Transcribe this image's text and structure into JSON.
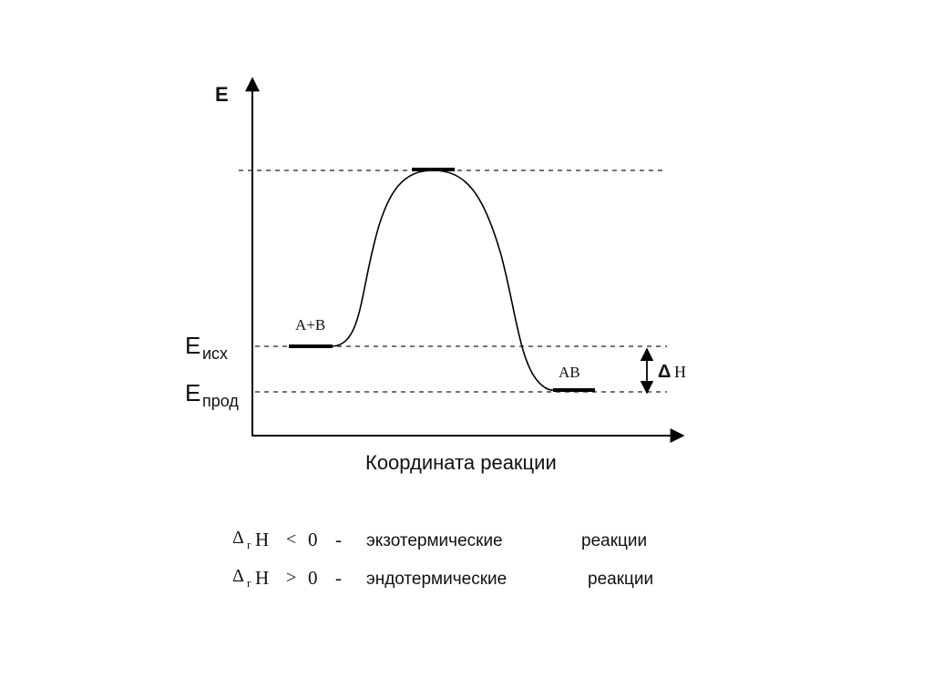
{
  "axes": {
    "y_label": "E",
    "x_label": "Координата реакции"
  },
  "levels": [
    {
      "symbol": "E",
      "subscript": "исх"
    },
    {
      "symbol": "E",
      "subscript": "прод"
    }
  ],
  "states": {
    "reactants": "A+B",
    "product": "AB"
  },
  "delta": {
    "symbol": "Δ",
    "label": "H"
  },
  "notes": [
    {
      "delta": "Δ",
      "subscript": "r",
      "symbol": "H",
      "relation": "<",
      "value": 0,
      "dash": "-",
      "term": "экзотермические",
      "word": "реакции"
    },
    {
      "delta": "Δ",
      "subscript": "r",
      "symbol": "H",
      "relation": ">",
      "value": 0,
      "dash": "-",
      "term": "эндотермические",
      "word": "реакции"
    }
  ]
}
